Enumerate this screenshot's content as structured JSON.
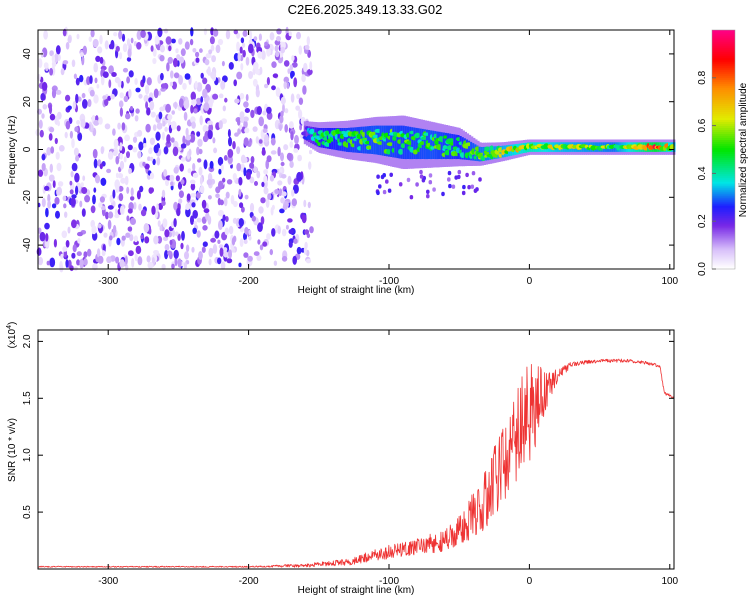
{
  "title": "C2E6.2025.349.13.33.G02",
  "chart_data": [
    {
      "type": "heatmap",
      "xlabel": "Height of straight line (km)",
      "ylabel": "Frequency (Hz)",
      "xlim": [
        -350,
        103
      ],
      "ylim": [
        -50,
        50
      ],
      "xticks": [
        -300,
        -200,
        -100,
        0,
        100
      ],
      "yticks": [
        -40,
        -20,
        0,
        20,
        40
      ],
      "noise_region": {
        "x_range": [
          -350,
          -155
        ],
        "amplitude_range": [
          0.03,
          0.25
        ]
      },
      "signal_track": [
        {
          "x": -160,
          "center_hz": 7,
          "halfwidth_hz": 3,
          "amplitude": 0.28
        },
        {
          "x": -150,
          "center_hz": 5,
          "halfwidth_hz": 4,
          "amplitude": 0.45
        },
        {
          "x": -130,
          "center_hz": 4,
          "halfwidth_hz": 5,
          "amplitude": 0.5
        },
        {
          "x": -110,
          "center_hz": 4,
          "halfwidth_hz": 6,
          "amplitude": 0.52
        },
        {
          "x": -90,
          "center_hz": 3,
          "halfwidth_hz": 7,
          "amplitude": 0.5
        },
        {
          "x": -70,
          "center_hz": 2,
          "halfwidth_hz": 6,
          "amplitude": 0.52
        },
        {
          "x": -50,
          "center_hz": 1,
          "halfwidth_hz": 5,
          "amplitude": 0.48
        },
        {
          "x": -35,
          "center_hz": -2,
          "halfwidth_hz": 3,
          "amplitude": 0.55
        },
        {
          "x": -20,
          "center_hz": -1,
          "halfwidth_hz": 2.5,
          "amplitude": 0.6
        },
        {
          "x": 0,
          "center_hz": 1,
          "halfwidth_hz": 2,
          "amplitude": 0.7
        },
        {
          "x": 20,
          "center_hz": 1,
          "halfwidth_hz": 2,
          "amplitude": 0.62
        },
        {
          "x": 60,
          "center_hz": 1,
          "halfwidth_hz": 2,
          "amplitude": 0.55
        },
        {
          "x": 90,
          "center_hz": 1,
          "halfwidth_hz": 2,
          "amplitude": 0.85
        },
        {
          "x": 103,
          "center_hz": 1,
          "halfwidth_hz": 2,
          "amplitude": 0.6
        }
      ],
      "colorbar": {
        "label": "Normalized spectral amplitude",
        "range": [
          0,
          1
        ],
        "ticks": [
          0.0,
          0.2,
          0.4,
          0.6,
          0.8
        ]
      }
    },
    {
      "type": "line",
      "xlabel": "Height of straight line (km)",
      "ylabel": "SNR (10 * v/v)",
      "exponent_label": "(x10",
      "exponent_power": "4",
      "exponent_close": ")",
      "xlim": [
        -350,
        103
      ],
      "ylim": [
        0,
        2.1
      ],
      "xticks": [
        -300,
        -200,
        -100,
        0,
        100
      ],
      "yticks": [
        0.5,
        1.0,
        1.5,
        2.0
      ],
      "ytick_labels": [
        "0.5",
        "1.0",
        "1.5",
        "2.0"
      ],
      "series": [
        {
          "name": "SNR",
          "color": "#ee3333",
          "envelope": {
            "x": [
              -350,
              -200,
              -160,
              -130,
              -110,
              -100,
              -80,
              -60,
              -50,
              -40,
              -30,
              -20,
              -10,
              -5,
              0,
              5,
              10,
              15,
              20,
              30,
              50,
              70,
              80,
              90,
              93,
              96,
              103
            ],
            "y": [
              0.02,
              0.02,
              0.03,
              0.06,
              0.12,
              0.15,
              0.2,
              0.25,
              0.33,
              0.48,
              0.65,
              0.9,
              1.1,
              1.3,
              1.35,
              1.45,
              1.55,
              1.62,
              1.7,
              1.8,
              1.83,
              1.83,
              1.82,
              1.79,
              1.78,
              1.55,
              1.5
            ],
            "noise": [
              0.005,
              0.005,
              0.015,
              0.03,
              0.05,
              0.06,
              0.08,
              0.1,
              0.14,
              0.2,
              0.3,
              0.35,
              0.4,
              0.5,
              0.45,
              0.35,
              0.25,
              0.12,
              0.06,
              0.02,
              0.015,
              0.015,
              0.015,
              0.015,
              0.01,
              0.02,
              0.01
            ]
          }
        }
      ]
    }
  ]
}
